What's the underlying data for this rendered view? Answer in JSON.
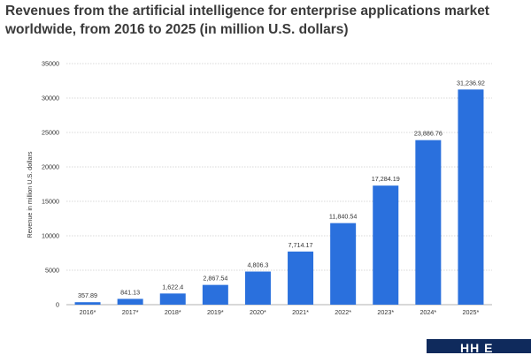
{
  "chart_data": {
    "type": "bar",
    "title": "Revenues from the artificial intelligence for enterprise applications market worldwide, from 2016 to 2025 (in million U.S. dollars)",
    "ylabel": "Revenue in million U.S. dollars",
    "xlabel": "",
    "categories": [
      "2016*",
      "2017*",
      "2018*",
      "2019*",
      "2020*",
      "2021*",
      "2022*",
      "2023*",
      "2024*",
      "2025*"
    ],
    "values": [
      357.89,
      841.13,
      1622.4,
      2867.54,
      4806.3,
      7714.17,
      11840.54,
      17284.19,
      23886.76,
      31236.92
    ],
    "value_labels": [
      "357.89",
      "841.13",
      "1,622.4",
      "2,867.54",
      "4,806.3",
      "7,714.17",
      "11,840.54",
      "17,284.19",
      "23,886.76",
      "31,236.92"
    ],
    "yticks": [
      0,
      5000,
      10000,
      15000,
      20000,
      25000,
      30000,
      35000
    ],
    "ylim": [
      0,
      35000
    ],
    "grid": true,
    "bar_color": "#2a70dd",
    "grid_color": "#cccccc"
  },
  "logo": {
    "text": "HH E"
  }
}
